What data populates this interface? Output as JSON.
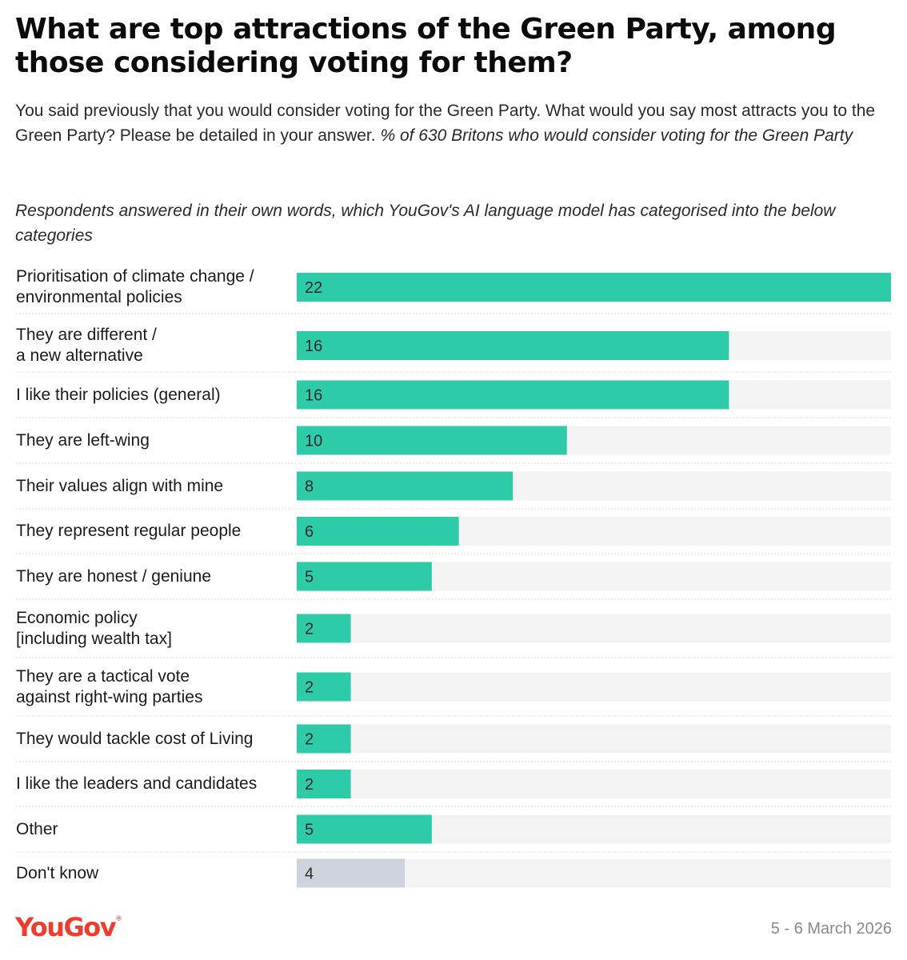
{
  "title": "What are top attractions of the Green Party, among those considering voting for them?",
  "subtitle": "You said previously that you would consider voting for the Green Party. What would you say most attracts you to the Green Party? Please be detailed in your answer.",
  "subtitle_base": "% of 630 Britons who would consider voting for the Green Party",
  "note": "Respondents answered in their own words, which YouGov's AI language model has categorised into the below categories",
  "footer": {
    "brand": "YouGov",
    "date": "5 - 6 March 2026"
  },
  "colors": {
    "bar": "#2ecba8",
    "bar_dont_know": "#cfd3dd",
    "track": "#f3f3f3",
    "divider": "#d8d8d8",
    "brand": "#ee3d2f"
  },
  "chart_data": {
    "type": "bar",
    "orientation": "horizontal",
    "categories": [
      "Prioritisation of climate change / environmental policies",
      "They are different / a new alternative",
      "I like their policies (general)",
      "They are left-wing",
      "Their values align with mine",
      "They represent regular people",
      "They are honest / geniune",
      "Economic policy [including wealth tax]",
      "They are a tactical vote against right-wing parties",
      "They would tackle cost of Living",
      "I like the leaders and candidates",
      "Other",
      "Don't know"
    ],
    "category_lines": [
      [
        "Prioritisation of climate change /",
        "environmental policies"
      ],
      [
        "They are different /",
        "a new alternative"
      ],
      [
        "I like their policies (general)"
      ],
      [
        "They are left-wing"
      ],
      [
        "Their values align with mine"
      ],
      [
        "They represent regular people"
      ],
      [
        "They are honest / geniune"
      ],
      [
        "Economic policy",
        "[including wealth tax]"
      ],
      [
        "They are a tactical vote",
        "against right-wing parties"
      ],
      [
        "They would tackle cost of Living"
      ],
      [
        "I like the leaders and candidates"
      ],
      [
        "Other"
      ],
      [
        "Don't know"
      ]
    ],
    "values": [
      22,
      16,
      16,
      10,
      8,
      6,
      5,
      2,
      2,
      2,
      2,
      5,
      4
    ],
    "xlim": [
      0,
      22
    ],
    "unit": "%"
  }
}
